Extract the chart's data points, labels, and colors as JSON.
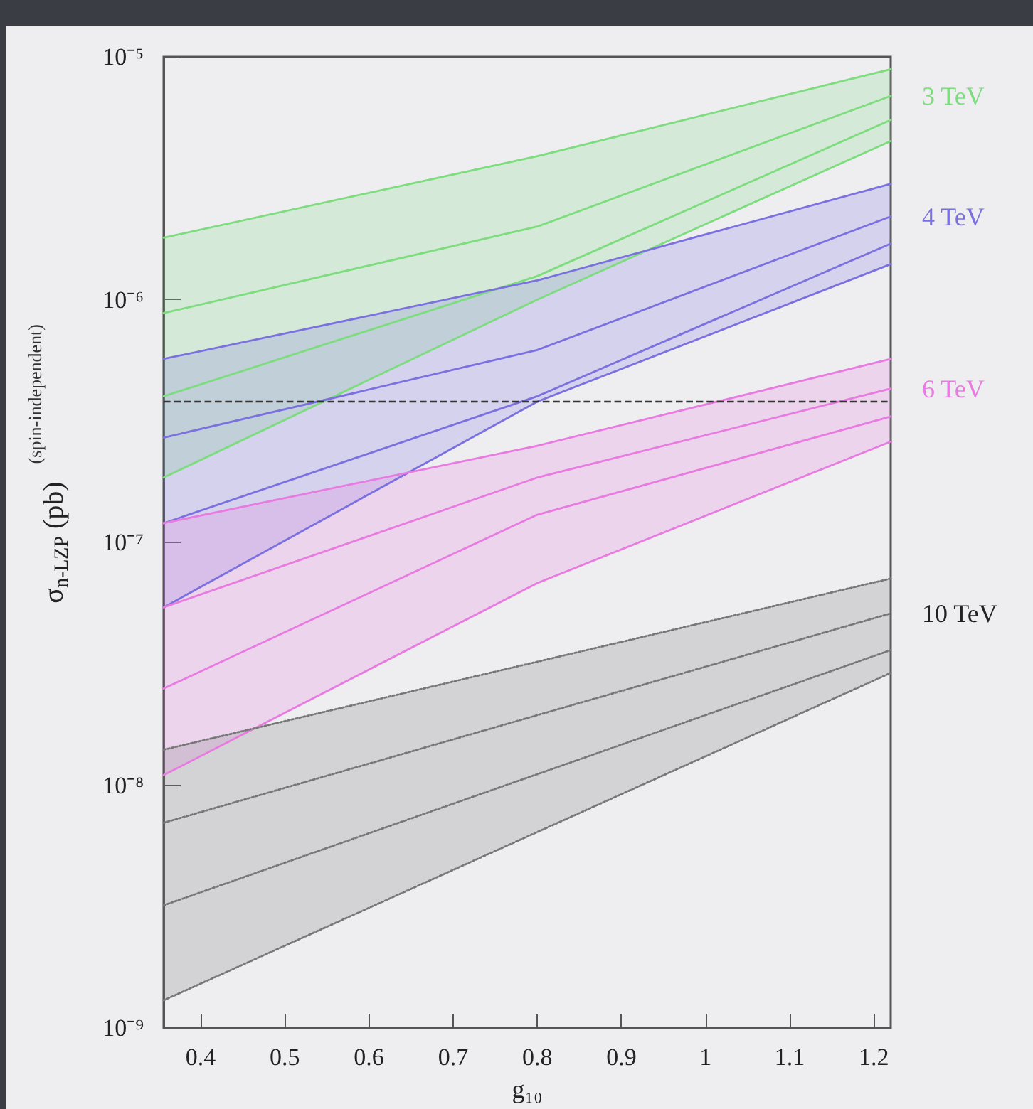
{
  "chart_data": {
    "type": "line",
    "xlabel": "g₁₀",
    "ylabel": "σ$_{n-LZP}$ (pb)",
    "annotations": [
      "(spin-independent)"
    ],
    "xlim": [
      0.356,
      1.22
    ],
    "xticks": [
      0.4,
      0.5,
      0.6,
      0.7,
      0.8,
      0.9,
      1,
      1.1,
      1.2
    ],
    "ylim": [
      1e-09,
      1e-05
    ],
    "yticks": [
      {
        "value": 1e-09,
        "label": "10⁻⁹"
      },
      {
        "value": 1e-08,
        "label": "10⁻⁸"
      },
      {
        "value": 1e-07,
        "label": "10⁻⁷"
      },
      {
        "value": 1e-06,
        "label": "10⁻⁶"
      },
      {
        "value": 1e-05,
        "label": "10⁻⁵"
      }
    ],
    "log": "y",
    "grid": false,
    "legend": false,
    "marker": "none",
    "line_style": "solid",
    "ref_lines": [
      {
        "axis": "y",
        "value": 3.8e-07,
        "label": null,
        "color": "#333333",
        "line_style": "dashed"
      }
    ],
    "series": [
      {
        "name": "3 TeV",
        "color": "#7ddc7d",
        "x": [
          0.356,
          0.8,
          1.22
        ],
        "values": [
          8.8e-07,
          2e-06,
          6.9e-06
        ],
        "lower": [
          1.85e-07,
          1e-06,
          4.5e-06
        ],
        "upper": [
          1.8e-06,
          3.9e-06,
          8.9e-06
        ]
      },
      {
        "color": "#7ddc7d",
        "x": [
          0.356,
          0.8,
          1.22
        ],
        "values": [
          4e-07,
          1.25e-06,
          5.5e-06
        ]
      },
      {
        "color": "#7ddc7d",
        "x": [
          0.356,
          0.8,
          1.22
        ],
        "values": [
          1.8e-06,
          3.9e-06,
          8.9e-06
        ]
      },
      {
        "color": "#7ddc7d",
        "x": [
          0.356,
          0.8,
          1.22
        ],
        "values": [
          1.85e-07,
          1e-06,
          4.5e-06
        ]
      },
      {
        "name": "4 TeV",
        "color": "#7b70e0",
        "x": [
          0.356,
          0.8,
          1.22
        ],
        "values": [
          2.7e-07,
          6.2e-07,
          2.2e-06
        ],
        "lower": [
          5.4e-08,
          3.8e-07,
          1.4e-06
        ],
        "upper": [
          5.7e-07,
          1.2e-06,
          3e-06
        ]
      },
      {
        "color": "#7b70e0",
        "x": [
          0.356,
          0.8,
          1.22
        ],
        "values": [
          1.2e-07,
          4e-07,
          1.7e-06
        ]
      },
      {
        "color": "#7b70e0",
        "x": [
          0.356,
          0.8,
          1.22
        ],
        "values": [
          5.7e-07,
          1.2e-06,
          3e-06
        ]
      },
      {
        "color": "#7b70e0",
        "x": [
          0.356,
          0.8,
          1.22
        ],
        "values": [
          5.4e-08,
          3.8e-07,
          1.4e-06
        ]
      },
      {
        "name": "6 TeV",
        "color": "#e87ae0",
        "x": [
          0.356,
          0.8,
          1.22
        ],
        "values": [
          5.4e-08,
          1.85e-07,
          4.3e-07
        ],
        "lower": [
          1.1e-08,
          6.8e-08,
          2.6e-07
        ],
        "upper": [
          1.2e-07,
          2.5e-07,
          5.7e-07
        ]
      },
      {
        "color": "#e87ae0",
        "x": [
          0.356,
          0.8,
          1.22
        ],
        "values": [
          2.5e-08,
          1.3e-07,
          3.3e-07
        ]
      },
      {
        "color": "#e87ae0",
        "x": [
          0.356,
          0.8,
          1.22
        ],
        "values": [
          1.2e-07,
          2.5e-07,
          5.7e-07
        ]
      },
      {
        "color": "#e87ae0",
        "x": [
          0.356,
          0.8,
          1.22
        ],
        "values": [
          1.1e-08,
          6.8e-08,
          2.6e-07
        ]
      },
      {
        "name": "10 TeV",
        "color": "#777777",
        "line_style": "dotted",
        "x": [
          0.356,
          1.22
        ],
        "values": [
          7e-09,
          5.1e-08
        ],
        "lower": [
          1.3e-09,
          2.9e-08
        ],
        "upper": [
          1.4e-08,
          7.1e-08
        ]
      },
      {
        "color": "#777777",
        "line_style": "dotted",
        "x": [
          0.356,
          1.22
        ],
        "values": [
          3.2e-09,
          3.6e-08
        ]
      },
      {
        "color": "#777777",
        "line_style": "dotted",
        "x": [
          0.356,
          1.22
        ],
        "values": [
          1.4e-08,
          7.1e-08
        ]
      },
      {
        "color": "#777777",
        "line_style": "dotted",
        "x": [
          0.356,
          1.22
        ],
        "values": [
          1.3e-09,
          2.9e-08
        ]
      }
    ]
  }
}
